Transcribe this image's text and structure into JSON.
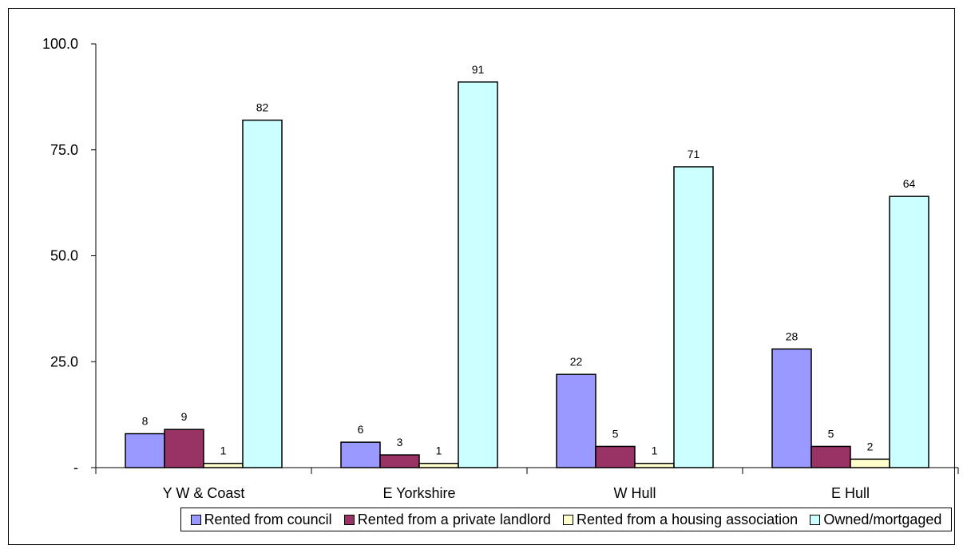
{
  "chart_data": {
    "type": "bar",
    "categories": [
      "Y W & Coast",
      "E Yorkshire",
      "W Hull",
      "E Hull"
    ],
    "series": [
      {
        "name": "Rented from council",
        "color": "#9999ff",
        "values": [
          8,
          6,
          22,
          28
        ]
      },
      {
        "name": "Rented from a private landlord",
        "color": "#993366",
        "values": [
          9,
          3,
          5,
          5
        ]
      },
      {
        "name": "Rented from a housing association",
        "color": "#ffffcc",
        "values": [
          1,
          1,
          1,
          2
        ]
      },
      {
        "name": "Owned/mortgaged",
        "color": "#ccffff",
        "values": [
          82,
          91,
          71,
          64
        ]
      }
    ],
    "ylim": [
      0,
      100
    ],
    "yticks": [
      0,
      25,
      50,
      75,
      100
    ],
    "ytick_labels": [
      "-",
      "25.0",
      "50.0",
      "75.0",
      "100.0"
    ],
    "data_labels": [
      [
        "8",
        "6",
        "22",
        "28"
      ],
      [
        "9",
        "3",
        "5",
        "5"
      ],
      [
        "1",
        "1",
        "1",
        "2"
      ],
      [
        "82",
        "91",
        "71",
        "64"
      ]
    ],
    "legend_position": "bottom",
    "grid": false
  }
}
